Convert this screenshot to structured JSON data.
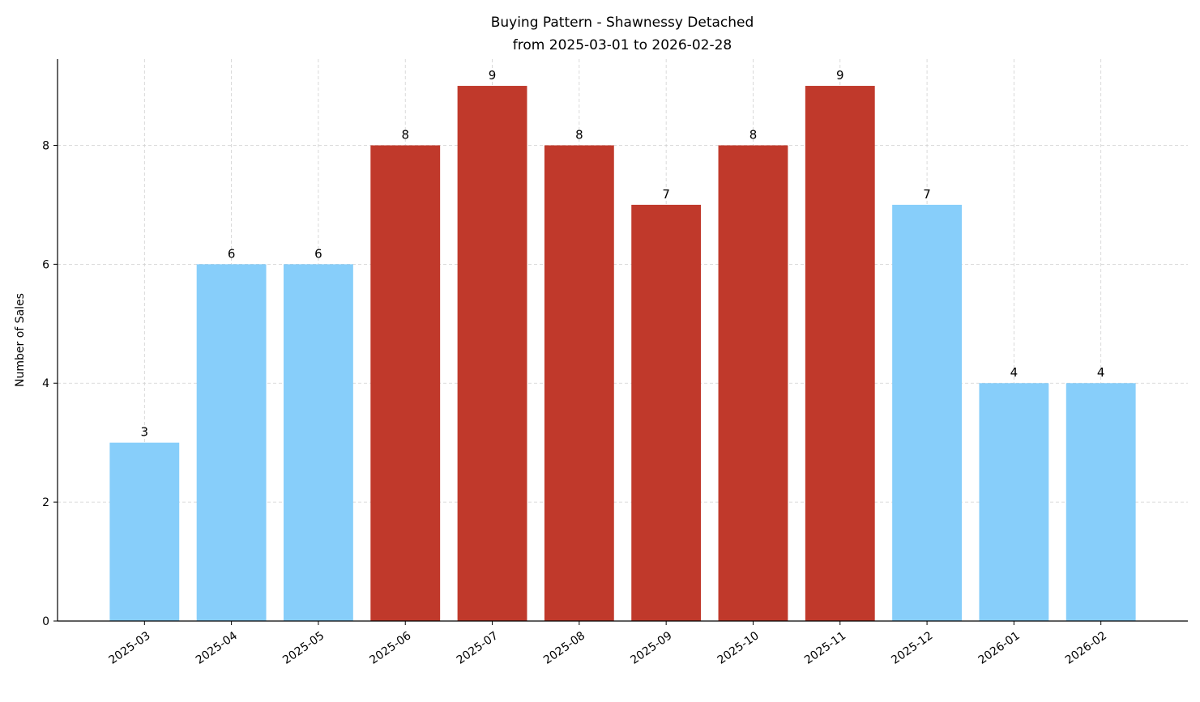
{
  "chart_data": {
    "type": "bar",
    "title": "Buying Pattern - Shawnessy Detached",
    "subtitle": "from 2025-03-01 to 2026-02-28",
    "xlabel": "",
    "ylabel": "Number of Sales",
    "categories": [
      "2025-03",
      "2025-04",
      "2025-05",
      "2025-06",
      "2025-07",
      "2025-08",
      "2025-09",
      "2025-10",
      "2025-11",
      "2025-12",
      "2026-01",
      "2026-02"
    ],
    "values": [
      3,
      6,
      6,
      8,
      9,
      8,
      7,
      8,
      9,
      7,
      4,
      4
    ],
    "highlight": [
      false,
      false,
      false,
      true,
      true,
      true,
      true,
      true,
      true,
      false,
      false,
      false
    ],
    "ylim": [
      0,
      9.45
    ],
    "yticks": [
      0,
      2,
      4,
      6,
      8
    ],
    "grid": true,
    "colors": {
      "normal": "#87CEFA",
      "highlight": "#C0392B"
    }
  }
}
